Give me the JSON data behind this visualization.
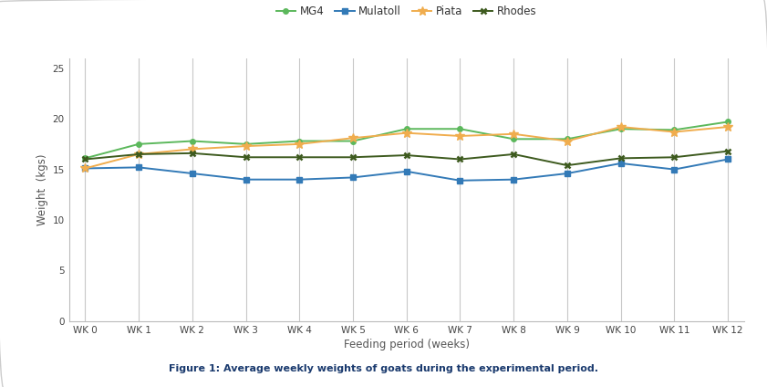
{
  "weeks": [
    "WK 0",
    "WK 1",
    "WK 2",
    "WK 3",
    "WK 4",
    "WK 5",
    "WK 6",
    "WK 7",
    "WK 8",
    "WK 9",
    "WK 10",
    "WK 11",
    "WK 12"
  ],
  "MG4": [
    16.1,
    17.5,
    17.8,
    17.5,
    17.8,
    17.8,
    19.0,
    19.0,
    18.0,
    18.0,
    19.0,
    18.9,
    19.7
  ],
  "Mulatoll": [
    15.1,
    15.2,
    14.6,
    14.0,
    14.0,
    14.2,
    14.8,
    13.9,
    14.0,
    14.6,
    15.6,
    15.0,
    16.0
  ],
  "Piata": [
    15.1,
    16.5,
    17.0,
    17.3,
    17.5,
    18.1,
    18.6,
    18.3,
    18.5,
    17.8,
    19.2,
    18.7,
    19.2
  ],
  "Rhodes": [
    16.0,
    16.5,
    16.6,
    16.2,
    16.2,
    16.2,
    16.4,
    16.0,
    16.5,
    15.4,
    16.1,
    16.2,
    16.8
  ],
  "MG4_color": "#5cb85c",
  "Mulatoll_color": "#337ab7",
  "Piata_color": "#f0ad4e",
  "Rhodes_color": "#3d5a1e",
  "xlabel": "Feeding period (weeks)",
  "ylabel": "Weight  (kgs)",
  "ylim": [
    0,
    26
  ],
  "yticks": [
    0,
    5,
    10,
    15,
    20,
    25
  ],
  "title": "Figure 1: Average weekly weights of goats during the experimental period.",
  "background_color": "#ffffff",
  "grid_color": "#c8c8c8",
  "border_color": "#cccccc"
}
